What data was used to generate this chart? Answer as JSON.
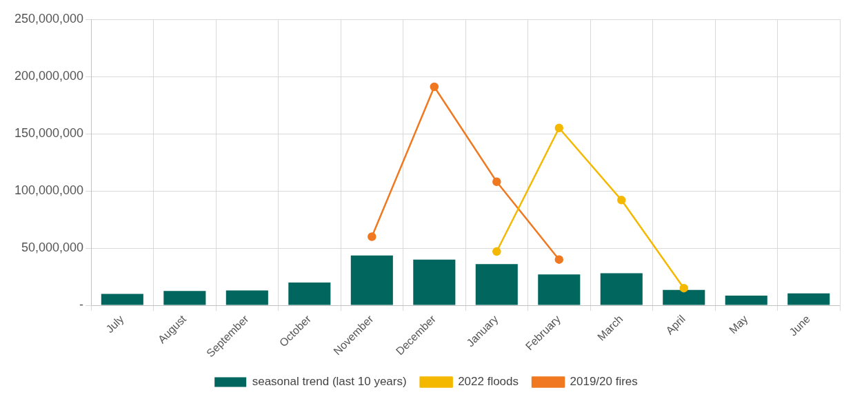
{
  "chart_data": {
    "type": "bar",
    "categories": [
      "July",
      "August",
      "September",
      "October",
      "November",
      "December",
      "January",
      "February",
      "March",
      "April",
      "May",
      "June"
    ],
    "series": [
      {
        "name": "seasonal trend (last 10 years)",
        "color": "#00665e",
        "values": [
          10000000,
          12500000,
          13000000,
          20000000,
          43500000,
          40000000,
          36000000,
          27000000,
          28000000,
          13500000,
          8500000,
          10500000
        ]
      },
      {
        "name": "2022 floods",
        "type": "line",
        "color": "#f5b800",
        "values": [
          null,
          null,
          null,
          null,
          null,
          null,
          47000000,
          155000000,
          92000000,
          15000000,
          null,
          null
        ]
      },
      {
        "name": "2019/20 fires",
        "type": "line",
        "color": "#f07820",
        "values": [
          null,
          null,
          null,
          null,
          60000000,
          191000000,
          108000000,
          40000000,
          null,
          null,
          null,
          null
        ]
      }
    ],
    "ylim": [
      0,
      250000000
    ],
    "yticks": [
      {
        "value": 0,
        "label": "-"
      },
      {
        "value": 50000000,
        "label": "50,000,000"
      },
      {
        "value": 100000000,
        "label": "100,000,000"
      },
      {
        "value": 150000000,
        "label": "150,000,000"
      },
      {
        "value": 200000000,
        "label": "200,000,000"
      },
      {
        "value": 250000000,
        "label": "250,000,000"
      }
    ],
    "grid": true,
    "legend": "bottom",
    "marker": "circle",
    "line_style": "solid"
  }
}
